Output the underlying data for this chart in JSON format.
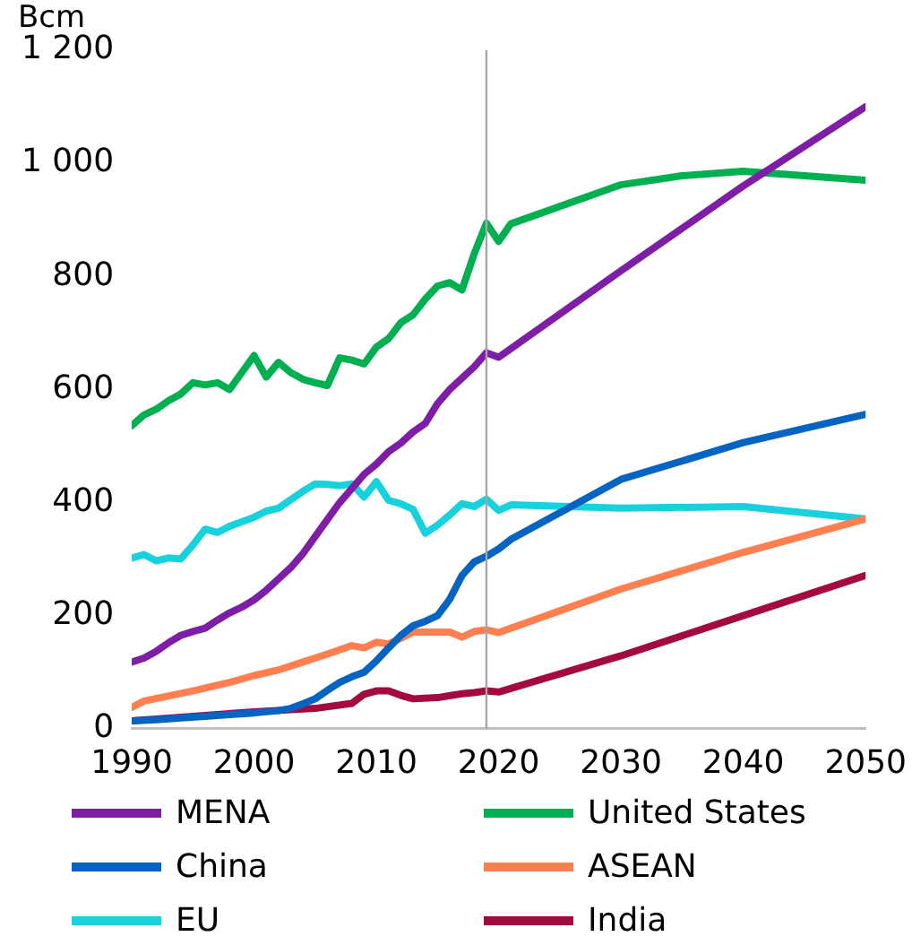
{
  "chart_data": {
    "type": "line",
    "ylabel": "Bcm",
    "xlim": [
      1990,
      2050
    ],
    "xticks": [
      1990,
      2000,
      2010,
      2020,
      2030,
      2040,
      2050
    ],
    "ylim": [
      0,
      1200
    ],
    "yticks": [
      0,
      200,
      400,
      600,
      800,
      {
        "value": 1000,
        "label": "1 000"
      },
      {
        "value": 1200,
        "label": "1 200"
      }
    ],
    "grid": false,
    "legend": "bottom",
    "marker": "none",
    "line_style": "solid",
    "ref_lines": [
      {
        "axis": "x",
        "value": 2019,
        "color": "#a6a6a6"
      }
    ],
    "series": [
      {
        "name": "MENA",
        "color": "#7e1ea6",
        "x": [
          1990,
          1991,
          1992,
          1993,
          1994,
          1995,
          1996,
          1997,
          1998,
          1999,
          2000,
          2001,
          2002,
          2003,
          2004,
          2005,
          2006,
          2007,
          2008,
          2009,
          2010,
          2011,
          2012,
          2013,
          2014,
          2015,
          2016,
          2017,
          2018,
          2019,
          2020,
          2030,
          2040,
          2050
        ],
        "values": [
          118,
          125,
          137,
          152,
          165,
          172,
          178,
          192,
          205,
          215,
          228,
          245,
          265,
          285,
          310,
          340,
          370,
          400,
          425,
          450,
          468,
          490,
          505,
          525,
          540,
          575,
          600,
          620,
          640,
          665,
          657,
          810,
          960,
          1100
        ]
      },
      {
        "name": "United States",
        "color": "#00b050",
        "x": [
          1990,
          1991,
          1992,
          1993,
          1994,
          1995,
          1996,
          1997,
          1998,
          1999,
          2000,
          2001,
          2002,
          2003,
          2004,
          2005,
          2006,
          2007,
          2008,
          2009,
          2010,
          2011,
          2012,
          2013,
          2014,
          2015,
          2016,
          2017,
          2018,
          2019,
          2020,
          2021,
          2030,
          2035,
          2040,
          2045,
          2050
        ],
        "values": [
          536,
          555,
          565,
          580,
          592,
          612,
          608,
          612,
          600,
          630,
          660,
          622,
          648,
          630,
          618,
          612,
          607,
          656,
          652,
          645,
          675,
          690,
          718,
          732,
          760,
          783,
          789,
          776,
          840,
          894,
          862,
          893,
          962,
          978,
          986,
          978,
          970
        ]
      },
      {
        "name": "China",
        "color": "#0563c1",
        "x": [
          1990,
          1992,
          1994,
          1996,
          1998,
          2000,
          2002,
          2003,
          2004,
          2005,
          2006,
          2007,
          2008,
          2009,
          2010,
          2011,
          2012,
          2013,
          2014,
          2015,
          2016,
          2017,
          2018,
          2019,
          2020,
          2021,
          2030,
          2040,
          2050
        ],
        "values": [
          14,
          16,
          19,
          22,
          25,
          28,
          32,
          36,
          44,
          53,
          68,
          82,
          92,
          100,
          120,
          143,
          165,
          182,
          190,
          200,
          229,
          271,
          295,
          305,
          318,
          335,
          441,
          506,
          556
        ]
      },
      {
        "name": "ASEAN",
        "color": "#ff7f50",
        "x": [
          1990,
          1991,
          1995,
          1998,
          2000,
          2002,
          2004,
          2006,
          2008,
          2009,
          2010,
          2011,
          2012,
          2013,
          2015,
          2016,
          2017,
          2018,
          2019,
          2020,
          2030,
          2040,
          2050
        ],
        "values": [
          38,
          49,
          67,
          82,
          94,
          104,
          118,
          132,
          147,
          143,
          153,
          150,
          160,
          171,
          171,
          171,
          162,
          172,
          175,
          170,
          247,
          312,
          371
        ]
      },
      {
        "name": "EU",
        "color": "#17d1dc",
        "x": [
          1990,
          1991,
          1992,
          1993,
          1994,
          1995,
          1996,
          1997,
          1998,
          1999,
          2000,
          2001,
          2002,
          2003,
          2004,
          2005,
          2006,
          2007,
          2008,
          2009,
          2010,
          2011,
          2012,
          2013,
          2014,
          2015,
          2016,
          2017,
          2018,
          2019,
          2020,
          2021,
          2030,
          2040,
          2050
        ],
        "values": [
          302,
          308,
          297,
          302,
          300,
          325,
          353,
          347,
          358,
          366,
          374,
          385,
          390,
          405,
          420,
          433,
          432,
          430,
          433,
          410,
          437,
          404,
          398,
          388,
          346,
          360,
          378,
          398,
          393,
          406,
          386,
          396,
          390,
          393,
          371
        ]
      },
      {
        "name": "India",
        "color": "#a50a3e",
        "x": [
          1990,
          1995,
          2000,
          2005,
          2008,
          2009,
          2010,
          2011,
          2012,
          2013,
          2015,
          2017,
          2018,
          2019,
          2020,
          2030,
          2040,
          2050
        ],
        "values": [
          14,
          22,
          30,
          36,
          45,
          61,
          67,
          67,
          59,
          53,
          55,
          62,
          64,
          67,
          65,
          129,
          200,
          271
        ]
      }
    ]
  }
}
